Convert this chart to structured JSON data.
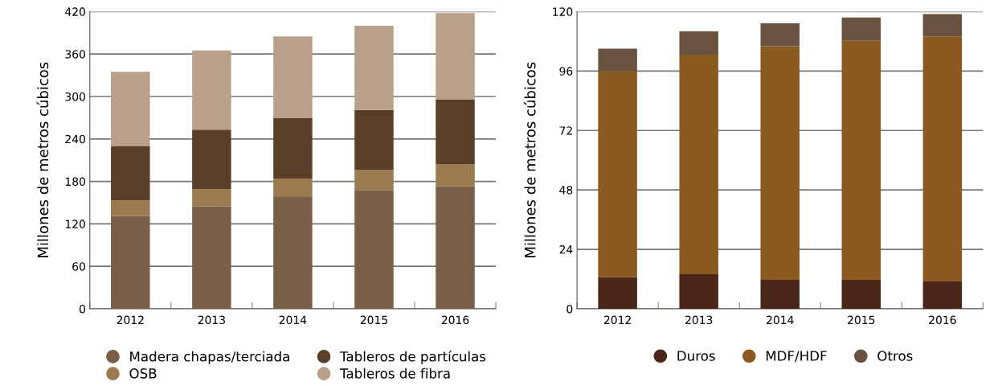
{
  "chart_data": [
    {
      "type": "bar",
      "stacked": true,
      "ylabel": "Millones de metros cúbicos",
      "categories": [
        "2012",
        "2013",
        "2014",
        "2015",
        "2016"
      ],
      "ylim": [
        0,
        420
      ],
      "yticks": [
        0,
        60,
        120,
        180,
        240,
        300,
        360,
        420
      ],
      "grid": "y",
      "legend": "bottom",
      "marker": "circle",
      "series": [
        {
          "name": "Madera chapas/terciada",
          "color": "#7a5f48",
          "values": [
            131,
            145,
            158,
            168,
            173
          ]
        },
        {
          "name": "OSB",
          "color": "#9c7a4f",
          "values": [
            22,
            24,
            26,
            28,
            31
          ]
        },
        {
          "name": "Tableros de partículas",
          "color": "#5a3f28",
          "values": [
            77,
            84,
            86,
            85,
            92
          ]
        },
        {
          "name": "Tableros de fibra",
          "color": "#b8a08a",
          "values": [
            105,
            112,
            115,
            119,
            122
          ]
        }
      ]
    },
    {
      "type": "bar",
      "stacked": true,
      "ylabel": "Millones de metros cúbicos",
      "categories": [
        "2012",
        "2013",
        "2014",
        "2015",
        "2016"
      ],
      "ylim": [
        0,
        120
      ],
      "yticks": [
        0,
        24,
        48,
        72,
        96,
        120
      ],
      "grid": "y",
      "legend": "bottom",
      "marker": "circle",
      "series": [
        {
          "name": "Duros",
          "color": "#4a2618",
          "values": [
            12.8,
            14,
            11.7,
            11.7,
            11
          ]
        },
        {
          "name": "MDF/HDF",
          "color": "#8a5a20",
          "values": [
            83.2,
            88.6,
            94.3,
            96.5,
            99
          ]
        },
        {
          "name": "Otros",
          "color": "#6a5240",
          "values": [
            9,
            9.4,
            9.3,
            9.4,
            9
          ]
        }
      ]
    }
  ]
}
